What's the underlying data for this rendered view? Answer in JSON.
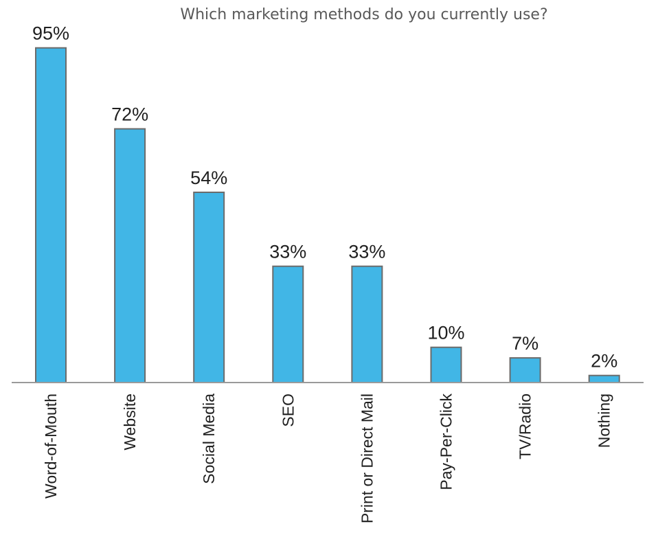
{
  "chart_data": {
    "type": "bar",
    "title": "Which marketing methods do you currently use?",
    "categories": [
      "Word-of-Mouth",
      "Website",
      "Social Media",
      "SEO",
      "Print or Direct Mail",
      "Pay-Per-Click",
      "TV/Radio",
      "Nothing"
    ],
    "values": [
      95,
      72,
      54,
      33,
      33,
      10,
      7,
      2
    ],
    "data_labels": [
      "95%",
      "72%",
      "54%",
      "33%",
      "33%",
      "10%",
      "7%",
      "2%"
    ],
    "value_unit": "%",
    "ylim": [
      0,
      100
    ],
    "xlabel": "",
    "ylabel": "",
    "grid": false,
    "legend": "none",
    "tick_label_orientation": "vertical",
    "colors": {
      "bar_fill": "#41b6e6",
      "bar_outline": "#6b6b6b",
      "axis": "#9a9a9a"
    }
  }
}
